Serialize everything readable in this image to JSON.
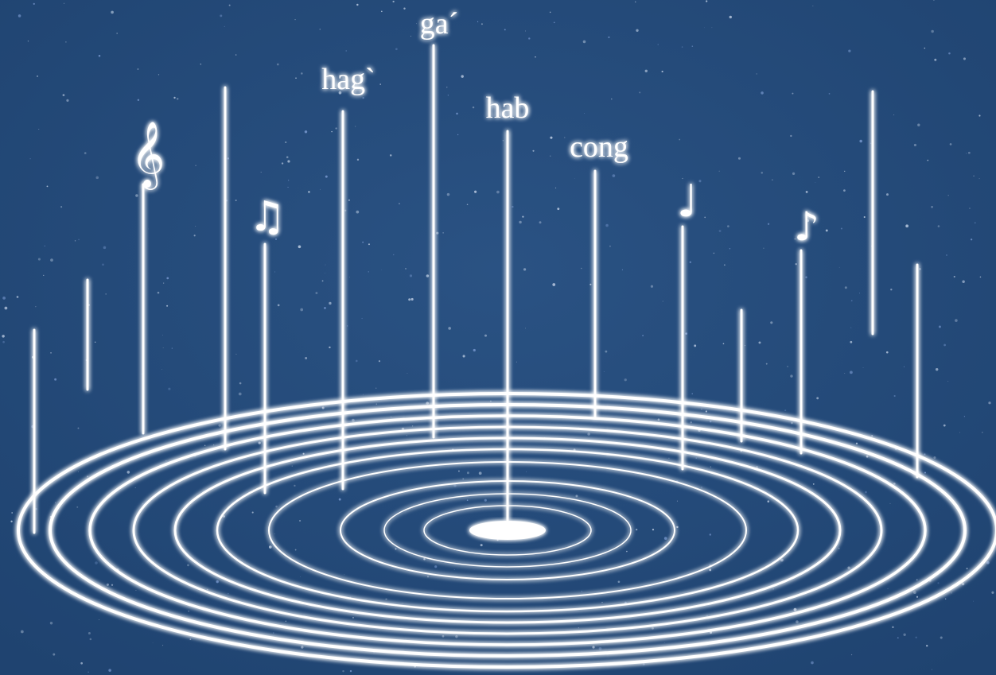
{
  "labels": [
    "ga´",
    "hag`",
    "hab",
    "cong"
  ],
  "symbols": [
    "𝄞",
    "♫",
    "♩",
    "♪"
  ]
}
